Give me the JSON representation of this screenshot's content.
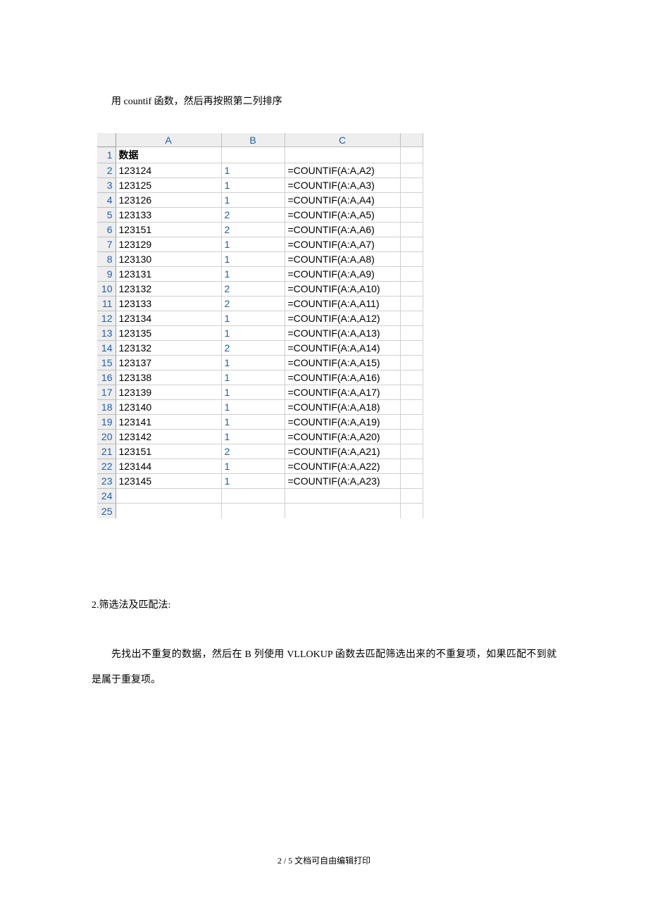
{
  "intro": "用 countif 函数，然后再按照第二列排序",
  "sheet": {
    "col_headers": [
      "A",
      "B",
      "C"
    ],
    "rows": [
      {
        "n": 1,
        "a": "数据",
        "b": "",
        "c": "",
        "a_bold": true
      },
      {
        "n": 2,
        "a": "123124",
        "b": "1",
        "c": "=COUNTIF(A:A,A2)"
      },
      {
        "n": 3,
        "a": "123125",
        "b": "1",
        "c": "=COUNTIF(A:A,A3)"
      },
      {
        "n": 4,
        "a": "123126",
        "b": "1",
        "c": "=COUNTIF(A:A,A4)"
      },
      {
        "n": 5,
        "a": "123133",
        "b": "2",
        "c": "=COUNTIF(A:A,A5)"
      },
      {
        "n": 6,
        "a": "123151",
        "b": "2",
        "c": "=COUNTIF(A:A,A6)"
      },
      {
        "n": 7,
        "a": "123129",
        "b": "1",
        "c": "=COUNTIF(A:A,A7)"
      },
      {
        "n": 8,
        "a": "123130",
        "b": "1",
        "c": "=COUNTIF(A:A,A8)"
      },
      {
        "n": 9,
        "a": "123131",
        "b": "1",
        "c": "=COUNTIF(A:A,A9)"
      },
      {
        "n": 10,
        "a": "123132",
        "b": "2",
        "c": "=COUNTIF(A:A,A10)"
      },
      {
        "n": 11,
        "a": "123133",
        "b": "2",
        "c": "=COUNTIF(A:A,A11)"
      },
      {
        "n": 12,
        "a": "123134",
        "b": "1",
        "c": "=COUNTIF(A:A,A12)"
      },
      {
        "n": 13,
        "a": "123135",
        "b": "1",
        "c": "=COUNTIF(A:A,A13)"
      },
      {
        "n": 14,
        "a": "123132",
        "b": "2",
        "c": "=COUNTIF(A:A,A14)"
      },
      {
        "n": 15,
        "a": "123137",
        "b": "1",
        "c": "=COUNTIF(A:A,A15)"
      },
      {
        "n": 16,
        "a": "123138",
        "b": "1",
        "c": "=COUNTIF(A:A,A16)"
      },
      {
        "n": 17,
        "a": "123139",
        "b": "1",
        "c": "=COUNTIF(A:A,A17)"
      },
      {
        "n": 18,
        "a": "123140",
        "b": "1",
        "c": "=COUNTIF(A:A,A18)"
      },
      {
        "n": 19,
        "a": "123141",
        "b": "1",
        "c": "=COUNTIF(A:A,A19)"
      },
      {
        "n": 20,
        "a": "123142",
        "b": "1",
        "c": "=COUNTIF(A:A,A20)"
      },
      {
        "n": 21,
        "a": "123151",
        "b": "2",
        "c": "=COUNTIF(A:A,A21)"
      },
      {
        "n": 22,
        "a": "123144",
        "b": "1",
        "c": "=COUNTIF(A:A,A22)"
      },
      {
        "n": 23,
        "a": "123145",
        "b": "1",
        "c": "=COUNTIF(A:A,A23)"
      },
      {
        "n": 24,
        "a": "",
        "b": "",
        "c": ""
      },
      {
        "n": 25,
        "a": "",
        "b": "",
        "c": ""
      }
    ]
  },
  "section2_title": "2.筛选法及匹配法:",
  "section2_body": "先找出不重复的数据，然后在 B 列使用 VLLOKUP 函数去匹配筛选出来的不重复项，如果匹配不到就是属于重复项。",
  "footer": "2 / 5 文档可自由编辑打印"
}
